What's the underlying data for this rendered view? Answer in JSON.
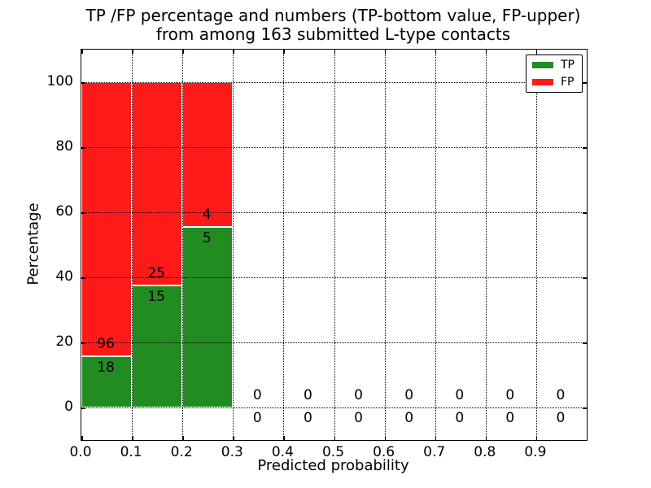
{
  "chart_data": {
    "type": "bar",
    "stacked": true,
    "title_lines": [
      "TP /FP percentage and numbers (TP-bottom value, FP-upper)",
      "from among 163 submitted L-type contacts"
    ],
    "xlabel": "Predicted probability",
    "ylabel": "Percentage",
    "xlim": [
      0.0,
      1.0
    ],
    "ylim": [
      -10,
      110
    ],
    "xtick_labels": [
      "0.0",
      "0.1",
      "0.2",
      "0.3",
      "0.4",
      "0.5",
      "0.6",
      "0.7",
      "0.8",
      "0.9"
    ],
    "xtick_values": [
      0.0,
      0.1,
      0.2,
      0.3,
      0.4,
      0.5,
      0.6,
      0.7,
      0.8,
      0.9
    ],
    "ytick_labels": [
      "0",
      "20",
      "40",
      "60",
      "80",
      "100"
    ],
    "ytick_values": [
      0,
      20,
      40,
      60,
      80,
      100
    ],
    "grid": "dotted black, drawn above bars",
    "total_submitted": 163,
    "bin_width": 0.1,
    "bins": [
      {
        "start": 0.0,
        "end": 0.1,
        "tp_count": 18,
        "fp_count": 96
      },
      {
        "start": 0.1,
        "end": 0.2,
        "tp_count": 15,
        "fp_count": 25
      },
      {
        "start": 0.2,
        "end": 0.3,
        "tp_count": 5,
        "fp_count": 4
      },
      {
        "start": 0.3,
        "end": 0.4,
        "tp_count": 0,
        "fp_count": 0
      },
      {
        "start": 0.4,
        "end": 0.5,
        "tp_count": 0,
        "fp_count": 0
      },
      {
        "start": 0.5,
        "end": 0.6,
        "tp_count": 0,
        "fp_count": 0
      },
      {
        "start": 0.6,
        "end": 0.7,
        "tp_count": 0,
        "fp_count": 0
      },
      {
        "start": 0.7,
        "end": 0.8,
        "tp_count": 0,
        "fp_count": 0
      },
      {
        "start": 0.8,
        "end": 0.9,
        "tp_count": 0,
        "fp_count": 0
      },
      {
        "start": 0.9,
        "end": 1.0,
        "tp_count": 0,
        "fp_count": 0
      }
    ],
    "legend": {
      "position": "upper right",
      "entries": [
        {
          "label": "TP",
          "color": "#228B22"
        },
        {
          "label": "FP",
          "color": "#FF1A1A"
        }
      ]
    },
    "colors": {
      "tp": "#228B22",
      "fp": "#FF1A1A",
      "frame": "#000000",
      "background": "#FFFFFF",
      "bar_edge": "#FFFFFF"
    }
  }
}
